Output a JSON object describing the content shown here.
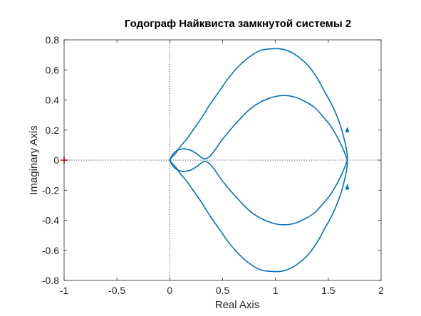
{
  "chart_data": {
    "type": "line",
    "title": "Годограф Найквиста замкнутой системы 2",
    "xlabel": "Real Axis",
    "ylabel": "Imaginary Axis",
    "xlim": [
      -1,
      2
    ],
    "ylim": [
      -0.8,
      0.8
    ],
    "x_ticks": [
      -1,
      -0.5,
      0,
      0.5,
      1,
      1.5,
      2
    ],
    "x_tick_labels": [
      "-1",
      "-0.5",
      "0",
      "0.5",
      "1",
      "1.5",
      "2"
    ],
    "y_ticks": [
      -0.8,
      -0.6,
      -0.4,
      -0.2,
      0,
      0.2,
      0.4,
      0.6,
      0.8
    ],
    "y_tick_labels": [
      "-0.8",
      "-0.6",
      "-0.4",
      "-0.2",
      "0",
      "0.2",
      "0.4",
      "0.6",
      "0.8"
    ],
    "grid": false,
    "reference_lines": {
      "x": 0,
      "y": 0,
      "style": "dotted"
    },
    "critical_point": {
      "x": -1,
      "y": 0,
      "marker": "+",
      "color": "#ff0000"
    },
    "curve_color": "#0072bd",
    "series": [
      {
        "x": [
          0,
          0.02,
          0.06,
          0.1,
          0.16,
          0.22,
          0.3,
          0.38,
          0.47,
          0.56,
          0.66,
          0.76,
          0.86,
          0.96,
          1.05,
          1.14,
          1.23,
          1.32,
          1.4,
          1.47,
          1.54,
          1.6,
          1.64,
          1.67,
          1.68,
          1.68
        ],
        "y": [
          0,
          0.02,
          0.05,
          0.09,
          0.14,
          0.2,
          0.28,
          0.37,
          0.46,
          0.55,
          0.63,
          0.69,
          0.73,
          0.74,
          0.74,
          0.72,
          0.68,
          0.62,
          0.54,
          0.45,
          0.36,
          0.26,
          0.17,
          0.08,
          0.03,
          0
        ]
      },
      {
        "x": [
          0,
          0.02,
          0.06,
          0.1,
          0.16,
          0.22,
          0.3,
          0.38,
          0.47,
          0.56,
          0.66,
          0.76,
          0.86,
          0.96,
          1.05,
          1.14,
          1.23,
          1.32,
          1.4,
          1.47,
          1.54,
          1.6,
          1.64,
          1.67,
          1.68,
          1.68
        ],
        "y": [
          0,
          -0.02,
          -0.05,
          -0.09,
          -0.14,
          -0.2,
          -0.28,
          -0.37,
          -0.46,
          -0.55,
          -0.63,
          -0.69,
          -0.73,
          -0.74,
          -0.74,
          -0.72,
          -0.68,
          -0.62,
          -0.54,
          -0.45,
          -0.36,
          -0.26,
          -0.17,
          -0.08,
          -0.03,
          0
        ]
      },
      {
        "x": [
          0,
          0.02,
          0.05,
          0.09,
          0.14,
          0.2,
          0.26,
          0.32,
          0.37,
          0.42,
          0.49,
          0.57,
          0.66,
          0.76,
          0.87,
          0.98,
          1.08,
          1.18,
          1.28,
          1.37,
          1.45,
          1.52,
          1.58,
          1.63,
          1.66,
          1.68
        ],
        "y": [
          0,
          0.03,
          0.055,
          0.07,
          0.075,
          0.065,
          0.04,
          0.01,
          0.02,
          0.06,
          0.13,
          0.2,
          0.27,
          0.34,
          0.39,
          0.42,
          0.43,
          0.42,
          0.39,
          0.35,
          0.29,
          0.23,
          0.16,
          0.09,
          0.04,
          0
        ]
      },
      {
        "x": [
          0,
          0.02,
          0.05,
          0.09,
          0.14,
          0.2,
          0.26,
          0.32,
          0.37,
          0.42,
          0.49,
          0.57,
          0.66,
          0.76,
          0.87,
          0.98,
          1.08,
          1.18,
          1.28,
          1.37,
          1.45,
          1.52,
          1.58,
          1.63,
          1.66,
          1.68
        ],
        "y": [
          0,
          -0.03,
          -0.055,
          -0.07,
          -0.075,
          -0.065,
          -0.04,
          -0.01,
          -0.02,
          -0.06,
          -0.13,
          -0.2,
          -0.27,
          -0.34,
          -0.39,
          -0.42,
          -0.43,
          -0.42,
          -0.39,
          -0.35,
          -0.29,
          -0.23,
          -0.16,
          -0.09,
          -0.04,
          0
        ]
      }
    ],
    "arrows": [
      {
        "x": 1.68,
        "y": 0.2,
        "direction": "up"
      },
      {
        "x": 1.68,
        "y": -0.18,
        "direction": "up"
      }
    ]
  }
}
